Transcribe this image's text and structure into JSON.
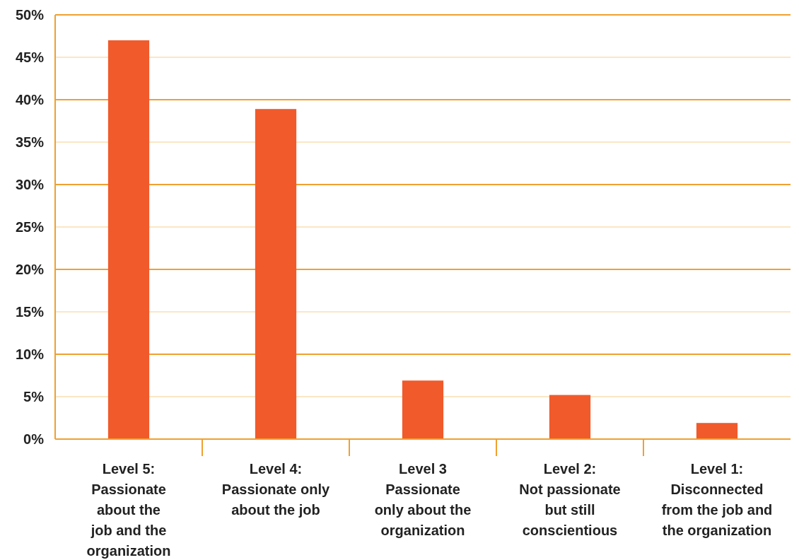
{
  "chart_data": {
    "type": "bar",
    "categories": [
      "Level 5:\nPassionate\nabout the\njob and the\norganization",
      "Level 4:\nPassionate only\nabout the job",
      "Level 3\nPassionate\nonly about the\norganization",
      "Level 2:\nNot passionate\nbut still\nconscientious",
      "Level 1:\nDisconnected\nfrom the job and\nthe organization"
    ],
    "values": [
      47,
      38.9,
      6.9,
      5.2,
      1.9
    ],
    "color": "#f15a2b",
    "ylim": [
      0,
      50
    ],
    "yticks": [
      {
        "value": 0,
        "label": "0%"
      },
      {
        "value": 5,
        "label": "5%"
      },
      {
        "value": 10,
        "label": "10%"
      },
      {
        "value": 15,
        "label": "15%"
      },
      {
        "value": 20,
        "label": "20%"
      },
      {
        "value": 25,
        "label": "25%"
      },
      {
        "value": 30,
        "label": "30%"
      },
      {
        "value": 35,
        "label": "35%"
      },
      {
        "value": 40,
        "label": "40%"
      },
      {
        "value": 45,
        "label": "45%"
      },
      {
        "value": 50,
        "label": "50%"
      }
    ],
    "grid": "y"
  }
}
